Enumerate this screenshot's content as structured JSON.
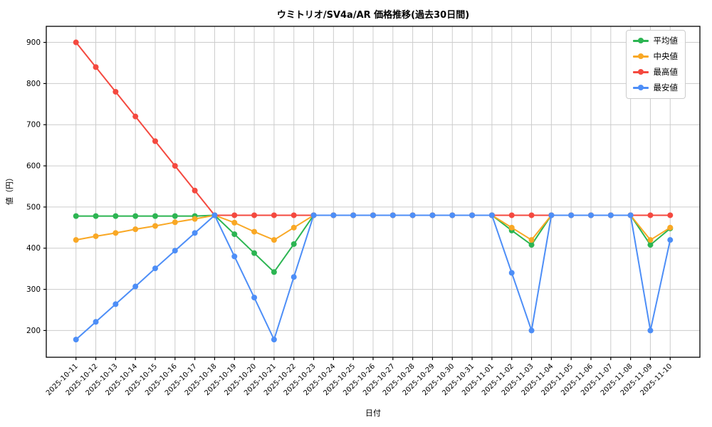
{
  "title": "ウミトリオ/SV4a/AR 価格推移(過去30日間)",
  "chart_data": {
    "type": "line",
    "title": "ウミトリオ/SV4a/AR 価格推移(過去30日間)",
    "xlabel": "日付",
    "ylabel": "値（円）",
    "grid": true,
    "legend_position": "upper right",
    "ylim": [
      135,
      939
    ],
    "yticks": [
      200,
      300,
      400,
      500,
      600,
      700,
      800,
      900
    ],
    "x": [
      "2025-10-11",
      "2025-10-12",
      "2025-10-13",
      "2025-10-14",
      "2025-10-15",
      "2025-10-16",
      "2025-10-17",
      "2025-10-18",
      "2025-10-19",
      "2025-10-20",
      "2025-10-21",
      "2025-10-22",
      "2025-10-23",
      "2025-10-24",
      "2025-10-25",
      "2025-10-26",
      "2025-10-27",
      "2025-10-28",
      "2025-10-29",
      "2025-10-30",
      "2025-10-31",
      "2025-11-01",
      "2025-11-02",
      "2025-11-03",
      "2025-11-04",
      "2025-11-05",
      "2025-11-06",
      "2025-11-07",
      "2025-11-08",
      "2025-11-09",
      "2025-11-10"
    ],
    "series": [
      {
        "key": "average",
        "name": "平均値",
        "color": "#2cb552",
        "values": [
          478,
          478,
          478,
          478,
          478,
          478,
          478,
          480,
          434,
          388,
          342,
          410,
          480,
          480,
          480,
          480,
          480,
          480,
          480,
          480,
          480,
          480,
          443,
          408,
          480,
          480,
          480,
          480,
          480,
          408,
          448
        ]
      },
      {
        "key": "median",
        "name": "中央値",
        "color": "#f9a825",
        "values": [
          420,
          429,
          437,
          446,
          454,
          463,
          471,
          480,
          462,
          440,
          420,
          450,
          480,
          480,
          480,
          480,
          480,
          480,
          480,
          480,
          480,
          480,
          450,
          420,
          480,
          480,
          480,
          480,
          480,
          420,
          450
        ]
      },
      {
        "key": "highest",
        "name": "最高値",
        "color": "#f4493f",
        "values": [
          900,
          840,
          780,
          720,
          660,
          600,
          540,
          480,
          480,
          480,
          480,
          480,
          480,
          480,
          480,
          480,
          480,
          480,
          480,
          480,
          480,
          480,
          480,
          480,
          480,
          480,
          480,
          480,
          480,
          480,
          480
        ]
      },
      {
        "key": "lowest",
        "name": "最安値",
        "color": "#4d8ef7",
        "values": [
          178,
          221,
          264,
          307,
          351,
          394,
          437,
          480,
          380,
          280,
          178,
          330,
          480,
          480,
          480,
          480,
          480,
          480,
          480,
          480,
          480,
          480,
          340,
          200,
          480,
          480,
          480,
          480,
          480,
          200,
          420
        ]
      }
    ]
  }
}
